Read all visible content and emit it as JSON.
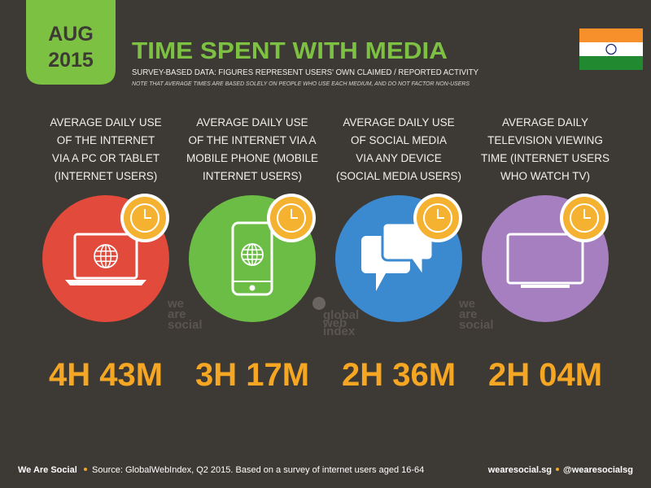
{
  "badge": {
    "month": "AUG",
    "year": "2015"
  },
  "header": {
    "title": "TIME SPENT WITH MEDIA",
    "subtitle": "SURVEY-BASED DATA: FIGURES REPRESENT USERS' OWN CLAIMED / REPORTED ACTIVITY",
    "note": "NOTE THAT AVERAGE TIMES ARE BASED SOLELY ON PEOPLE WHO USE EACH MEDIUM, AND DO NOT FACTOR NON-USERS"
  },
  "columns": [
    {
      "label": [
        "AVERAGE DAILY USE",
        "OF THE INTERNET",
        "VIA A PC OR TABLET",
        "(INTERNET USERS)"
      ],
      "value": "4H 43M",
      "color": "#e24a3b"
    },
    {
      "label": [
        "AVERAGE DAILY USE",
        "OF THE INTERNET VIA A",
        "MOBILE PHONE (MOBILE",
        "INTERNET USERS)"
      ],
      "value": "3H 17M",
      "color": "#6cbd45"
    },
    {
      "label": [
        "AVERAGE DAILY USE",
        "OF SOCIAL MEDIA",
        "VIA ANY DEVICE",
        "(SOCIAL MEDIA USERS)"
      ],
      "value": "2H 36M",
      "color": "#3b8ad0"
    },
    {
      "label": [
        "AVERAGE DAILY",
        "TELEVISION VIEWING",
        "TIME (INTERNET USERS",
        "WHO WATCH TV)"
      ],
      "value": "2H 04M",
      "color": "#a57fbf"
    }
  ],
  "watermarks": {
    "left": [
      "we",
      "are",
      "social"
    ],
    "center": [
      "global",
      "web",
      "index"
    ],
    "right": [
      "we",
      "are",
      "social"
    ]
  },
  "footer": {
    "brand": "We Are Social",
    "source": "Source: GlobalWebIndex, Q2 2015. Based on a survey of internet users aged 16-64",
    "site": "wearesocial.sg",
    "handle": "@wearesocialsg"
  }
}
